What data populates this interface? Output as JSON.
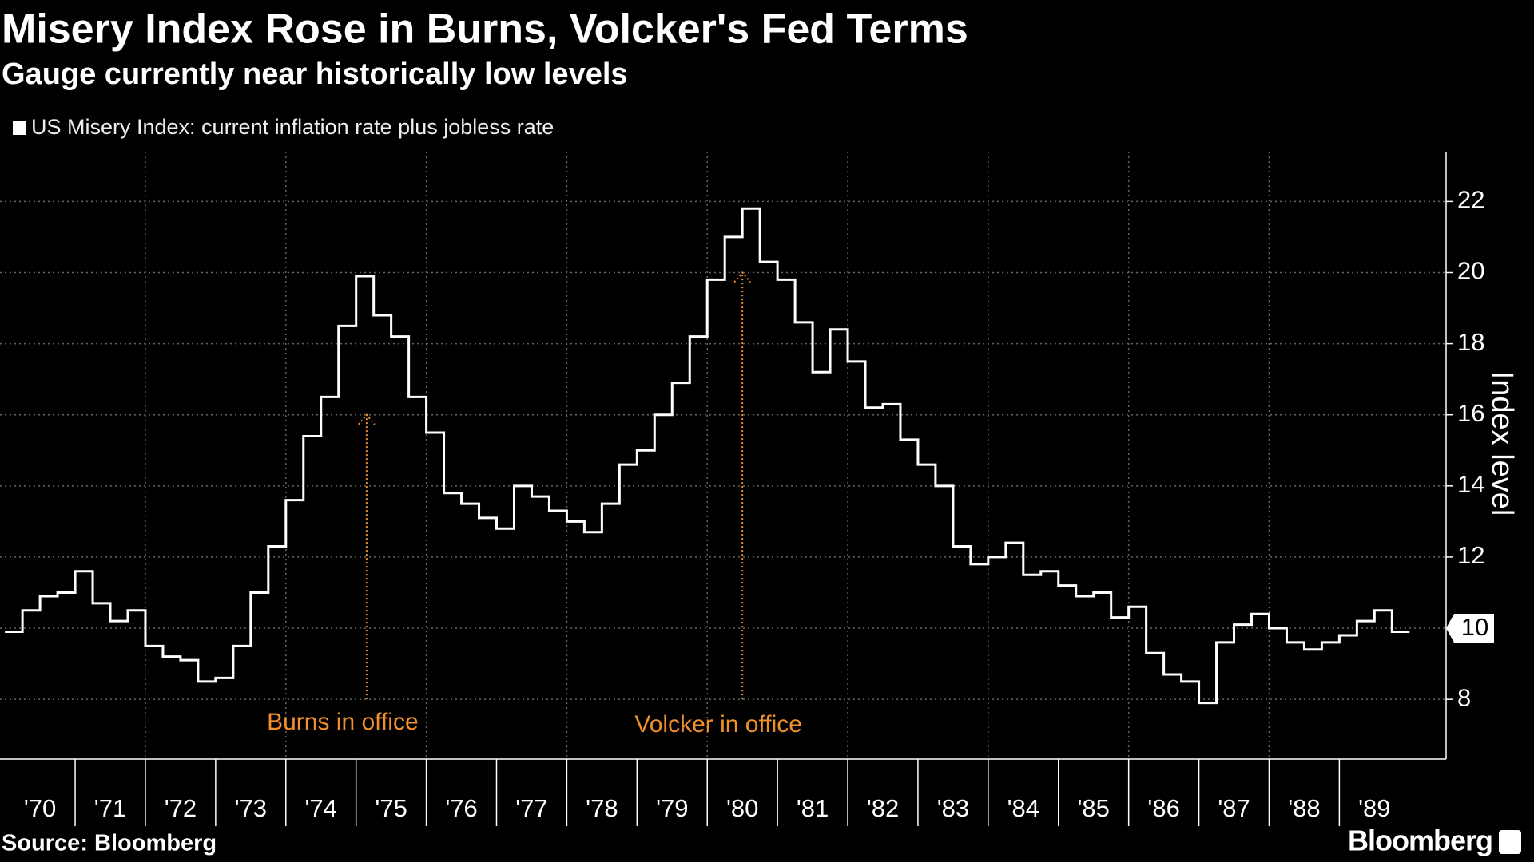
{
  "chart_data": {
    "type": "step_line",
    "title": "Misery Index Rose in Burns, Volcker's Fed Terms",
    "subtitle": "Gauge currently near historically low levels",
    "y_axis_label": "Index level",
    "source": "Source: Bloomberg",
    "brand": "Bloomberg",
    "current_value": 10,
    "x": [
      1970,
      1970.25,
      1970.5,
      1970.75,
      1971,
      1971.25,
      1971.5,
      1971.75,
      1972,
      1972.25,
      1972.5,
      1972.75,
      1973,
      1973.25,
      1973.5,
      1973.75,
      1974,
      1974.25,
      1974.5,
      1974.75,
      1975,
      1975.25,
      1975.5,
      1975.75,
      1976,
      1976.25,
      1976.5,
      1976.75,
      1977,
      1977.25,
      1977.5,
      1977.75,
      1978,
      1978.25,
      1978.5,
      1978.75,
      1979,
      1979.25,
      1979.5,
      1979.75,
      1980,
      1980.25,
      1980.5,
      1980.75,
      1981,
      1981.25,
      1981.5,
      1981.75,
      1982,
      1982.25,
      1982.5,
      1982.75,
      1983,
      1983.25,
      1983.5,
      1983.75,
      1984,
      1984.25,
      1984.5,
      1984.75,
      1985,
      1985.25,
      1985.5,
      1985.75,
      1986,
      1986.25,
      1986.5,
      1986.75,
      1987,
      1987.25,
      1987.5,
      1987.75,
      1988,
      1988.25,
      1988.5,
      1988.75,
      1989,
      1989.25,
      1989.5,
      1989.75
    ],
    "series": [
      {
        "name": "US Misery Index: current inflation rate plus jobless rate",
        "color": "#ffffff",
        "values": [
          9.9,
          10.5,
          10.9,
          11.0,
          11.6,
          10.7,
          10.2,
          10.5,
          9.5,
          9.2,
          9.1,
          8.5,
          8.6,
          9.5,
          11.0,
          12.3,
          13.6,
          15.4,
          16.5,
          18.5,
          19.9,
          18.8,
          18.2,
          16.5,
          15.5,
          13.8,
          13.5,
          13.1,
          12.8,
          14.0,
          13.7,
          13.3,
          13.0,
          12.7,
          13.5,
          14.6,
          15.0,
          16.0,
          16.9,
          18.2,
          19.8,
          21.0,
          21.8,
          20.3,
          19.8,
          18.6,
          17.2,
          18.4,
          17.5,
          16.2,
          16.3,
          15.3,
          14.6,
          14.0,
          12.3,
          11.8,
          12.0,
          12.4,
          11.5,
          11.6,
          11.2,
          10.9,
          11.0,
          10.3,
          10.6,
          9.3,
          8.7,
          8.5,
          7.9,
          9.6,
          10.1,
          10.4,
          10.0,
          9.6,
          9.4,
          9.6,
          9.8,
          10.2,
          10.5,
          9.9
        ]
      }
    ],
    "annotations": [
      {
        "text": "Burns in office",
        "x": 1975.15,
        "y": 16
      },
      {
        "text": "Volcker in office",
        "x": 1980.5,
        "y": 20
      }
    ],
    "annotation_color": "#f0902a",
    "xlim": [
      1969.93,
      1990.52
    ],
    "ylim": [
      6.32,
      23.4
    ],
    "yticks": [
      8,
      10,
      12,
      14,
      16,
      18,
      20,
      22
    ],
    "xticks": [
      {
        "value": 1970,
        "label": "'70"
      },
      {
        "value": 1971,
        "label": "'71"
      },
      {
        "value": 1972,
        "label": "'72"
      },
      {
        "value": 1973,
        "label": "'73"
      },
      {
        "value": 1974,
        "label": "'74"
      },
      {
        "value": 1975,
        "label": "'75"
      },
      {
        "value": 1976,
        "label": "'76"
      },
      {
        "value": 1977,
        "label": "'77"
      },
      {
        "value": 1978,
        "label": "'78"
      },
      {
        "value": 1979,
        "label": "'79"
      },
      {
        "value": 1980,
        "label": "'80"
      },
      {
        "value": 1981,
        "label": "'81"
      },
      {
        "value": 1982,
        "label": "'82"
      },
      {
        "value": 1983,
        "label": "'83"
      },
      {
        "value": 1984,
        "label": "'84"
      },
      {
        "value": 1985,
        "label": "'85"
      },
      {
        "value": 1986,
        "label": "'86"
      },
      {
        "value": 1987,
        "label": "'87"
      },
      {
        "value": 1988,
        "label": "'88"
      },
      {
        "value": 1989,
        "label": "'89"
      }
    ],
    "grid": true
  }
}
